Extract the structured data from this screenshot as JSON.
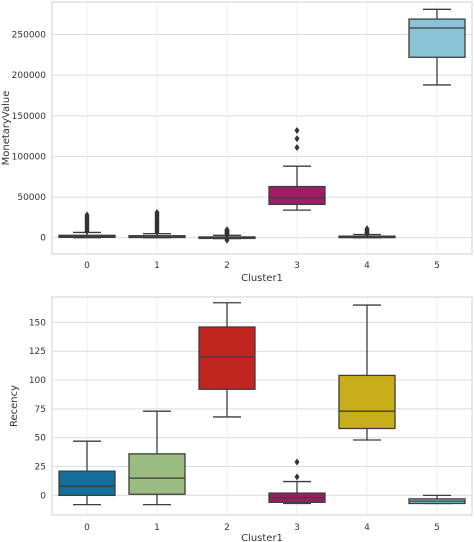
{
  "chart_data": [
    {
      "type": "box",
      "xlabel": "Cluster1",
      "ylabel": "MonetaryValue",
      "categories": [
        "0",
        "1",
        "2",
        "3",
        "4",
        "5"
      ],
      "yticks": [
        0,
        50000,
        100000,
        150000,
        200000,
        250000
      ],
      "ytick_labels": [
        "0",
        "50000",
        "100000",
        "150000",
        "200000",
        "250000"
      ],
      "ylim": [
        -20000,
        290000
      ],
      "grid": true,
      "boxes": [
        {
          "category": "0",
          "color": "#1f77b4",
          "whisker_low": 0,
          "q1": 500,
          "median": 1500,
          "q3": 3000,
          "whisker_high": 6500,
          "outliers": [
            8000,
            10000,
            12000,
            14000,
            16000,
            18000,
            20000,
            22000,
            24000,
            26000,
            28000
          ]
        },
        {
          "category": "1",
          "color": "#a0c183",
          "whisker_low": 0,
          "q1": 300,
          "median": 1000,
          "q3": 2500,
          "whisker_high": 5000,
          "outliers": [
            7000,
            9000,
            11000,
            13000,
            15000,
            17000,
            19000,
            21000,
            23000,
            25000,
            27000,
            29000,
            31000
          ]
        },
        {
          "category": "2",
          "color": "#c1271f",
          "whisker_low": -1000,
          "q1": 0,
          "median": 500,
          "q3": 1000,
          "whisker_high": 3000,
          "outliers": [
            -3000,
            4000,
            5000,
            6000,
            7000,
            8000,
            9000,
            10000
          ]
        },
        {
          "category": "3",
          "color": "#9e1d67",
          "whisker_low": 34000,
          "q1": 41000,
          "median": 49000,
          "q3": 63000,
          "whisker_high": 88000,
          "outliers": [
            111000,
            122000,
            132000
          ]
        },
        {
          "category": "4",
          "color": "#c9b217",
          "whisker_low": 0,
          "q1": 400,
          "median": 1000,
          "q3": 2000,
          "whisker_high": 4000,
          "outliers": [
            5000,
            6500,
            8000,
            9500,
            11000
          ]
        },
        {
          "category": "5",
          "color": "#8ac4d6",
          "whisker_low": 188000,
          "q1": 222000,
          "median": 258000,
          "q3": 269000,
          "whisker_high": 281000,
          "outliers": []
        }
      ]
    },
    {
      "type": "box",
      "xlabel": "Cluster1",
      "ylabel": "Recency",
      "categories": [
        "0",
        "1",
        "2",
        "3",
        "4",
        "5"
      ],
      "yticks": [
        0,
        25,
        50,
        75,
        100,
        125,
        150
      ],
      "ytick_labels": [
        "0",
        "25",
        "50",
        "75",
        "100",
        "125",
        "150"
      ],
      "ylim": [
        -17,
        172
      ],
      "grid": true,
      "boxes": [
        {
          "category": "0",
          "color": "#136e9c",
          "whisker_low": -8,
          "q1": 0,
          "median": 8,
          "q3": 21,
          "whisker_high": 47,
          "outliers": []
        },
        {
          "category": "1",
          "color": "#9bbd81",
          "whisker_low": -8,
          "q1": 1,
          "median": 15,
          "q3": 36,
          "whisker_high": 73,
          "outliers": []
        },
        {
          "category": "2",
          "color": "#c0251f",
          "whisker_low": 68,
          "q1": 92,
          "median": 120,
          "q3": 146,
          "whisker_high": 167,
          "outliers": []
        },
        {
          "category": "3",
          "color": "#9b1d66",
          "whisker_low": -7,
          "q1": -6,
          "median": -2,
          "q3": 2,
          "whisker_high": 12,
          "outliers": [
            16,
            29
          ]
        },
        {
          "category": "4",
          "color": "#c7ae1a",
          "whisker_low": 48,
          "q1": 58,
          "median": 73,
          "q3": 104,
          "whisker_high": 165,
          "outliers": []
        },
        {
          "category": "5",
          "color": "#84c1d4",
          "whisker_low": -7,
          "q1": -7,
          "median": -5,
          "q3": -3,
          "whisker_high": 0,
          "outliers": []
        }
      ]
    }
  ]
}
